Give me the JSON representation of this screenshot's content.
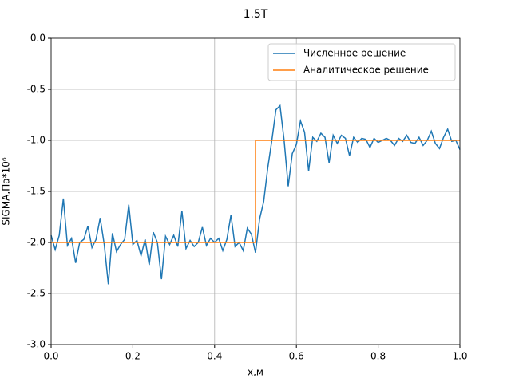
{
  "chart_data": {
    "type": "line",
    "title": "1.5T",
    "x_label": "x,м",
    "y_label": "SIGMA,Па*10⁶",
    "xlim": [
      0,
      1
    ],
    "ylim": [
      -3,
      0
    ],
    "xticks": [
      {
        "value": 0,
        "label": "0.0"
      },
      0.2,
      0.4,
      0.6,
      0.8,
      {
        "value": 1,
        "label": "1.0"
      }
    ],
    "yticks": [
      {
        "value": 0,
        "label": "0.0"
      },
      -0.5,
      {
        "value": -1,
        "label": "-1.0"
      },
      -1.5,
      {
        "value": -2,
        "label": "-2.0"
      },
      -2.5,
      {
        "value": -3,
        "label": "-3.0"
      }
    ],
    "grid": true,
    "legend": "upper right",
    "series": [
      {
        "name": "Численное решение",
        "color": "#1f77b4",
        "x": [
          0,
          0.01,
          0.02,
          0.03,
          0.04,
          0.05,
          0.06,
          0.07,
          0.08,
          0.09,
          0.1,
          0.11,
          0.12,
          0.13,
          0.14,
          0.15,
          0.16,
          0.17,
          0.18,
          0.19,
          0.2,
          0.21,
          0.22,
          0.23,
          0.24,
          0.25,
          0.26,
          0.27,
          0.28,
          0.29,
          0.3,
          0.31,
          0.32,
          0.33,
          0.34,
          0.35,
          0.36,
          0.37,
          0.38,
          0.39,
          0.4,
          0.41,
          0.42,
          0.43,
          0.44,
          0.45,
          0.46,
          0.47,
          0.48,
          0.49,
          0.5,
          0.51,
          0.52,
          0.53,
          0.54,
          0.55,
          0.56,
          0.57,
          0.58,
          0.59,
          0.6,
          0.61,
          0.62,
          0.63,
          0.64,
          0.65,
          0.66,
          0.67,
          0.68,
          0.69,
          0.7,
          0.71,
          0.72,
          0.73,
          0.74,
          0.75,
          0.76,
          0.77,
          0.78,
          0.79,
          0.8,
          0.81,
          0.82,
          0.83,
          0.84,
          0.85,
          0.86,
          0.87,
          0.88,
          0.89,
          0.9,
          0.91,
          0.92,
          0.93,
          0.94,
          0.95,
          0.96,
          0.97,
          0.98,
          0.99,
          1
        ],
        "values": [
          -1.93,
          -2.07,
          -1.93,
          -1.57,
          -2.03,
          -1.96,
          -2.2,
          -2.0,
          -1.97,
          -1.84,
          -2.05,
          -1.97,
          -1.76,
          -2.02,
          -2.41,
          -1.91,
          -2.09,
          -2.02,
          -1.97,
          -1.63,
          -2.02,
          -1.98,
          -2.13,
          -1.97,
          -2.22,
          -1.9,
          -2.0,
          -2.36,
          -1.94,
          -2.02,
          -1.93,
          -2.04,
          -1.69,
          -2.06,
          -1.98,
          -2.04,
          -2.0,
          -1.85,
          -2.03,
          -1.96,
          -2.0,
          -1.96,
          -2.08,
          -1.97,
          -1.73,
          -2.04,
          -2.0,
          -2.08,
          -1.86,
          -1.92,
          -2.1,
          -1.77,
          -1.6,
          -1.27,
          -1.0,
          -0.7,
          -0.66,
          -1.0,
          -1.45,
          -1.13,
          -1.04,
          -0.81,
          -0.92,
          -1.3,
          -0.97,
          -1.01,
          -0.93,
          -0.97,
          -1.22,
          -0.95,
          -1.03,
          -0.95,
          -0.98,
          -1.15,
          -0.97,
          -1.02,
          -0.98,
          -0.99,
          -1.07,
          -0.98,
          -1.02,
          -1.0,
          -0.98,
          -1.0,
          -1.05,
          -0.98,
          -1.01,
          -0.95,
          -1.02,
          -1.03,
          -0.97,
          -1.05,
          -1.0,
          -0.91,
          -1.03,
          -1.08,
          -0.97,
          -0.89,
          -1.01,
          -1.0,
          -1.09
        ]
      },
      {
        "name": "Аналитическое решение",
        "color": "#ff7f0e",
        "x": [
          0,
          0.5,
          0.5,
          1
        ],
        "values": [
          -2,
          -2,
          -1,
          -1
        ]
      }
    ]
  }
}
